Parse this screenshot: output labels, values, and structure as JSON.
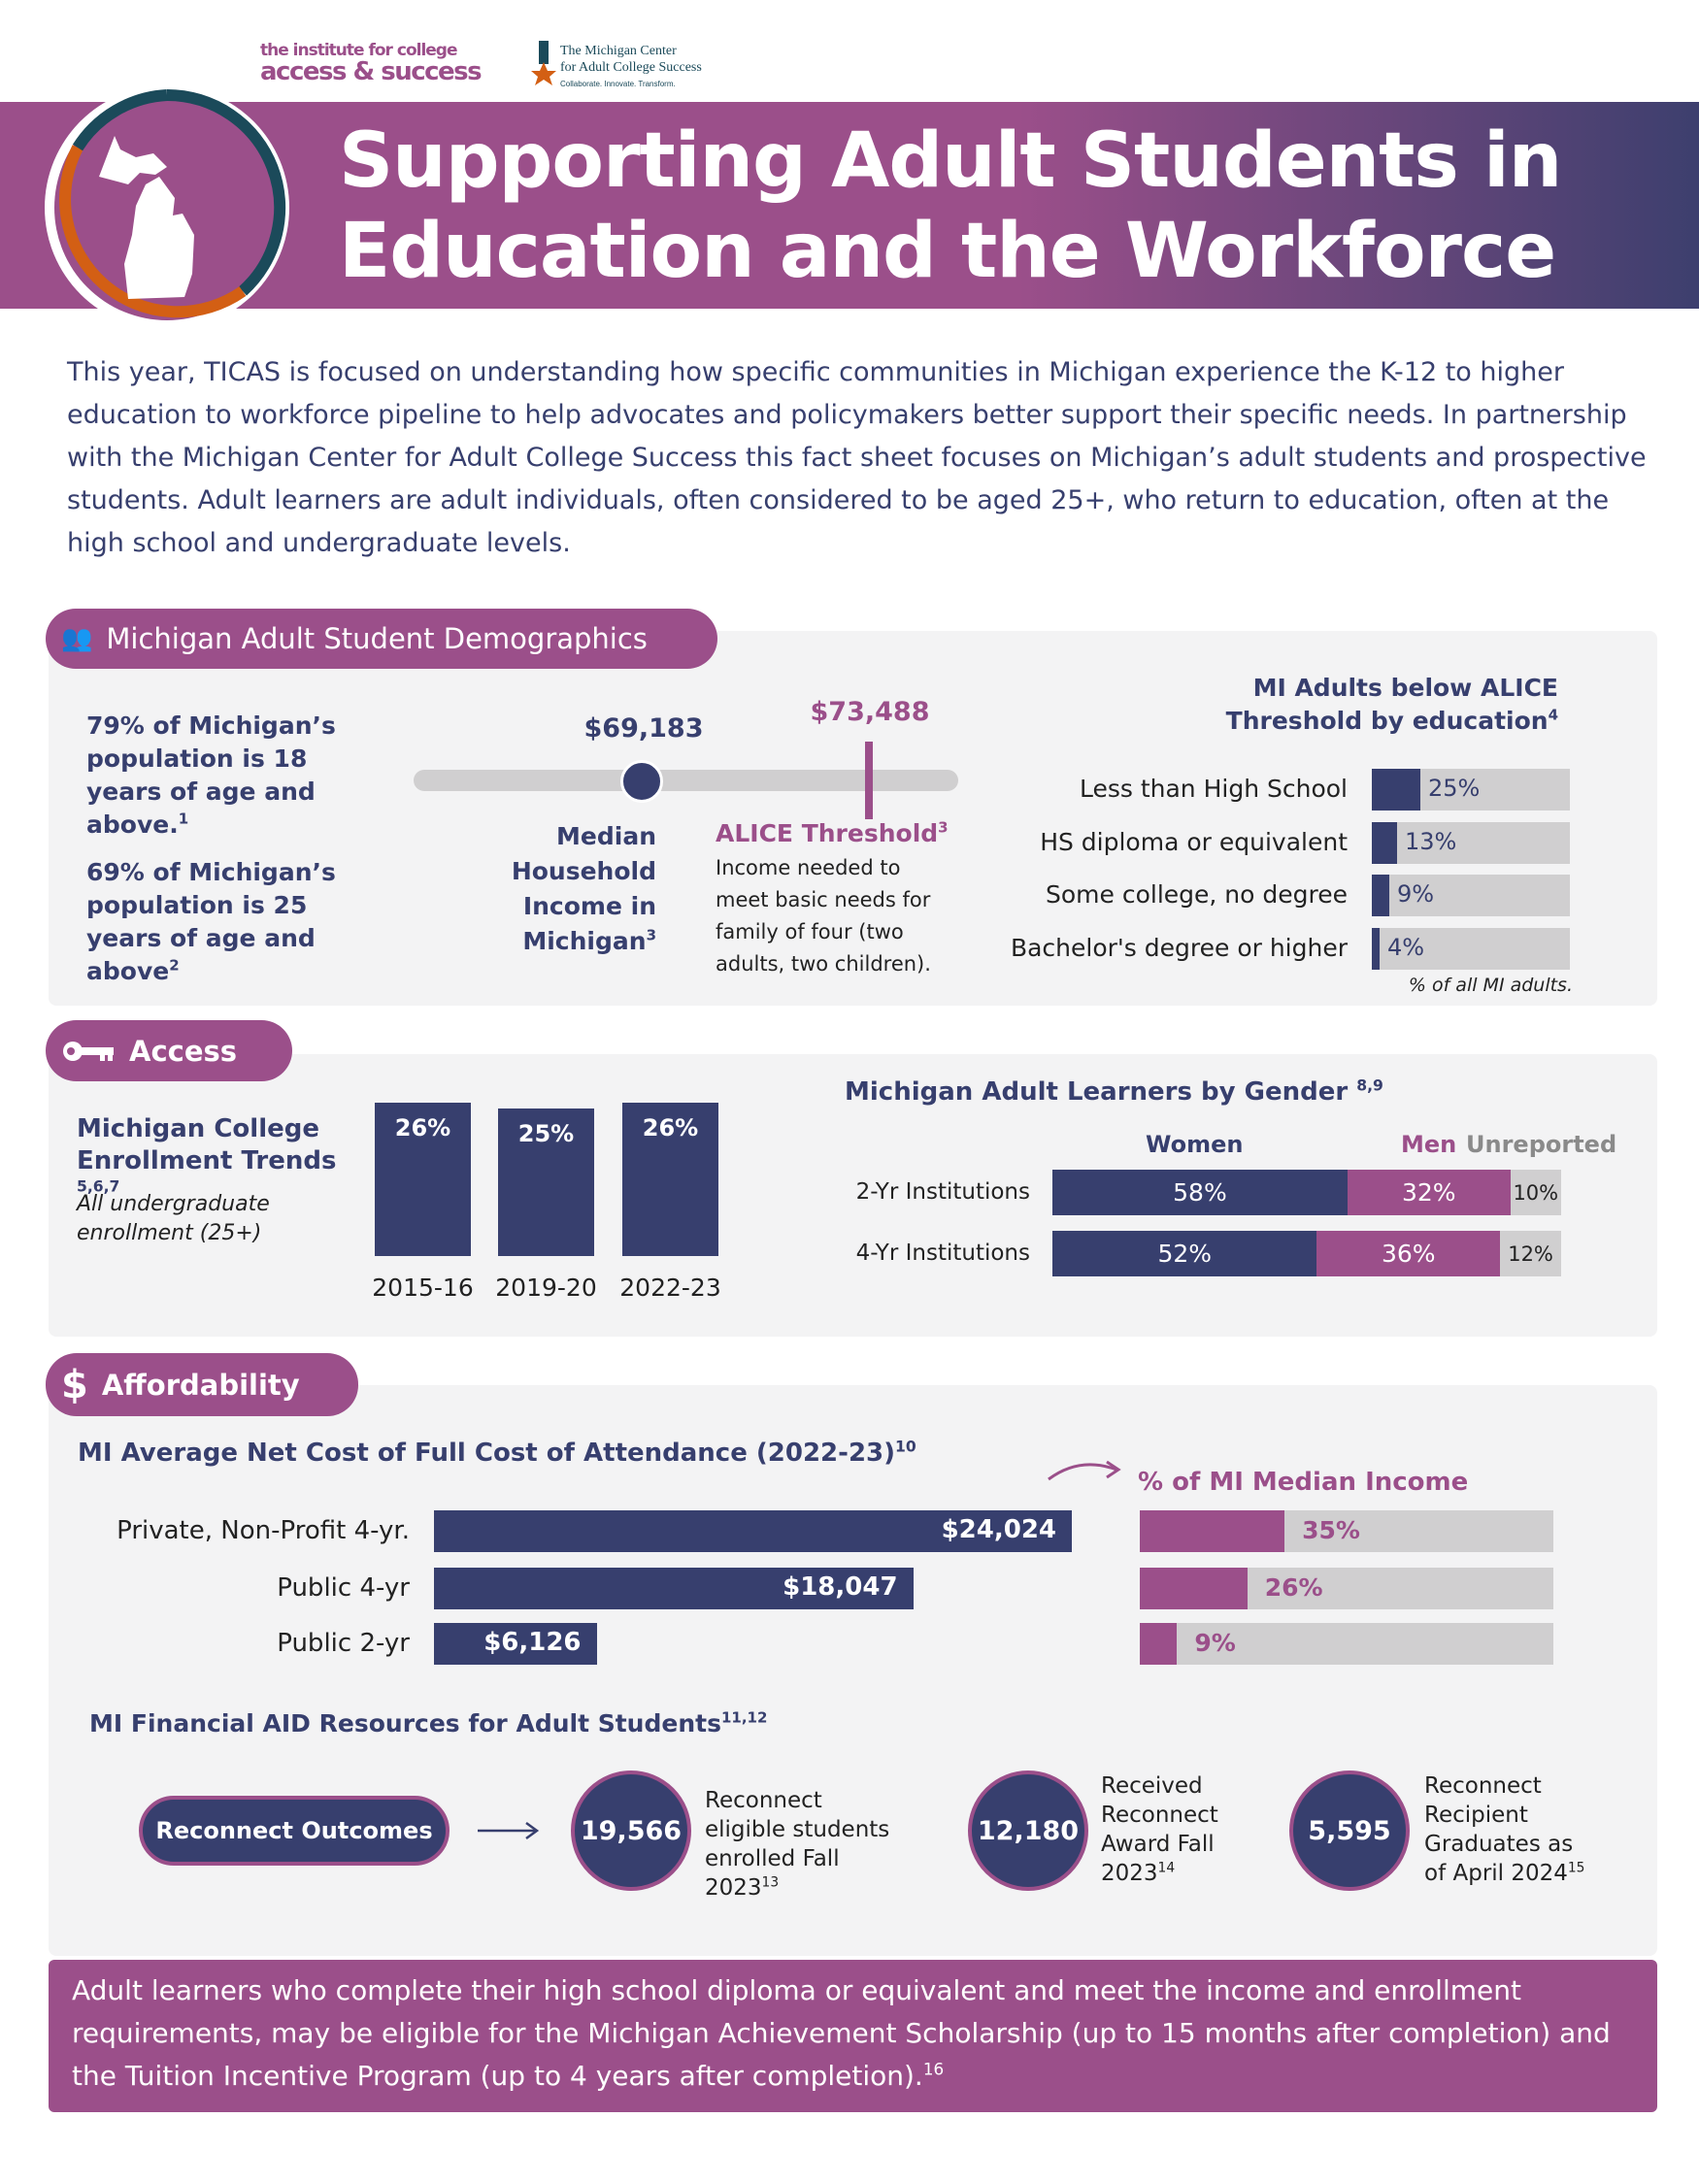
{
  "logos": {
    "ticas_line1": "the institute for college",
    "ticas_line2": "access & success",
    "mcacs_line1": "The Michigan Center",
    "mcacs_line2": "for Adult College Success",
    "mcacs_tagline": "Collaborate. Innovate. Transform."
  },
  "header": {
    "title_line1": "Supporting Adult Students in",
    "title_line2": "Education and the Workforce"
  },
  "intro": "This year, TICAS is focused on understanding how specific communities in Michigan experience the K-12 to higher education to workforce pipeline to help advocates and policymakers better support their specific needs. In partnership with the Michigan Center for Adult College Success this fact sheet focuses on Michigan’s adult students and prospective students. Adult learners are adult individuals, often considered to be aged 25+, who return to education, often at the high school and undergraduate levels.",
  "colors": {
    "navy": "#373f6e",
    "purple": "#9b4f8a",
    "gray": "#d0cfd0",
    "orange": "#d35f14",
    "teal": "#1b4a5a"
  },
  "demographics": {
    "heading": "Michigan Adult Student Demographics",
    "icon": "people-icon",
    "stat1": "79% of Michigan’s population is 18 years of age and above.",
    "stat1_ref": "1",
    "stat2": "69% of Michigan’s population is 25 years of age and above",
    "stat2_ref": "2",
    "median_value": "$69,183",
    "median_label": "Median Household Income in Michigan",
    "median_ref": "3",
    "alice_value": "$73,488",
    "alice_label": "ALICE Threshold",
    "alice_ref": "3",
    "alice_desc": "Income needed to meet basic needs for family of four (two adults, two children).",
    "alice_chart": {
      "title_line1": "MI Adults below ALICE",
      "title_line2": "Threshold by education",
      "title_ref": "4",
      "note": "% of all MI adults.",
      "rows": [
        {
          "label": "Less than High School",
          "value": 25,
          "text": "25%"
        },
        {
          "label": "HS diploma or equivalent",
          "value": 13,
          "text": "13%"
        },
        {
          "label": "Some college, no degree",
          "value": 9,
          "text": "9%"
        },
        {
          "label": "Bachelor's degree or higher",
          "value": 4,
          "text": "4%"
        }
      ]
    }
  },
  "access": {
    "heading": "Access",
    "icon": "key-icon",
    "enroll_title": "Michigan College Enrollment Trends",
    "enroll_ref": "5,6,7",
    "enroll_sub": "All undergraduate enrollment (25+)",
    "enroll": [
      {
        "year": "2015-16",
        "value": 26,
        "text": "26%"
      },
      {
        "year": "2019-20",
        "value": 25,
        "text": "25%"
      },
      {
        "year": "2022-23",
        "value": 26,
        "text": "26%"
      }
    ],
    "gender_title": "Michigan Adult Learners by Gender",
    "gender_ref": "8,9",
    "legend": {
      "women": "Women",
      "men": "Men",
      "unreported": "Unreported"
    },
    "gender": [
      {
        "label": "2-Yr Institutions",
        "women": 58,
        "men": 32,
        "unreported": 10,
        "w": "58%",
        "m": "32%",
        "u": "10%"
      },
      {
        "label": "4-Yr Institutions",
        "women": 52,
        "men": 36,
        "unreported": 12,
        "w": "52%",
        "m": "36%",
        "u": "12%"
      }
    ]
  },
  "affordability": {
    "heading": "Affordability",
    "icon": "dollar-icon",
    "cost_title": "MI Average Net Cost of Full Cost of Attendance (2022-23)",
    "cost_ref": "10",
    "income_title": "% of MI Median Income",
    "costs": [
      {
        "label": "Private, Non-Profit 4-yr.",
        "value": 24024,
        "text": "$24,024",
        "pct": 35,
        "pct_text": "35%"
      },
      {
        "label": "Public 4-yr",
        "value": 18047,
        "text": "$18,047",
        "pct": 26,
        "pct_text": "26%"
      },
      {
        "label": "Public 2-yr",
        "value": 6126,
        "text": "$6,126",
        "pct": 9,
        "pct_text": "9%"
      }
    ],
    "aid_title": "MI Financial AID Resources for Adult Students",
    "aid_ref": "11,12",
    "outcomes_button": "Reconnect Outcomes",
    "outcomes": [
      {
        "value": "19,566",
        "text": "Reconnect eligible students enrolled Fall 2023",
        "ref": "13"
      },
      {
        "value": "12,180",
        "text": "Received Reconnect Award Fall 2023",
        "ref": "14"
      },
      {
        "value": "5,595",
        "text": "Reconnect Recipient Graduates as of April 2024",
        "ref": "15"
      }
    ]
  },
  "footer": {
    "text": "Adult learners who complete their high school diploma or equivalent and meet the income and enrollment requirements, may be eligible for the Michigan Achievement Scholarship (up to 15 months after completion) and the Tuition Incentive Program (up to 4 years after completion).",
    "ref": "16"
  }
}
